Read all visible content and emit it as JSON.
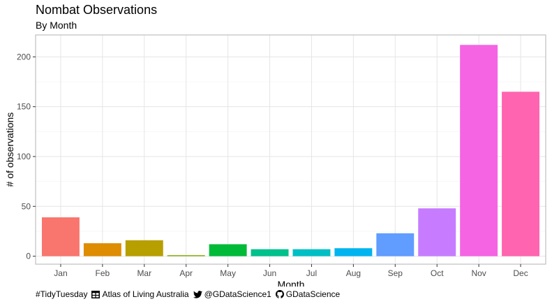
{
  "chart_data": {
    "type": "bar",
    "title": "Nombat Observations",
    "subtitle": "By Month",
    "xlabel": "Month",
    "ylabel": "# of observations",
    "categories": [
      "Jan",
      "Feb",
      "Mar",
      "Apr",
      "May",
      "Jun",
      "Jul",
      "Aug",
      "Sep",
      "Oct",
      "Nov",
      "Dec"
    ],
    "values": [
      39,
      13,
      16,
      1,
      12,
      7,
      7,
      8,
      23,
      48,
      212,
      165
    ],
    "colors": [
      "#F8766D",
      "#DE8C00",
      "#B79F00",
      "#7CAE00",
      "#00BA38",
      "#00C08B",
      "#00BFC4",
      "#00B4F0",
      "#619CFF",
      "#C77CFF",
      "#F564E3",
      "#FF64B0"
    ],
    "yticks": [
      0,
      50,
      100,
      150,
      200
    ],
    "ylim": [
      -8,
      222
    ],
    "grid": true,
    "legend": "none"
  },
  "caption": {
    "tag": "#TidyTuesday",
    "source": "Atlas of Living Australia",
    "twitter": "@GDataScience1",
    "github": "GDataScience",
    "icons": [
      "table-icon",
      "twitter-icon",
      "github-icon"
    ]
  }
}
